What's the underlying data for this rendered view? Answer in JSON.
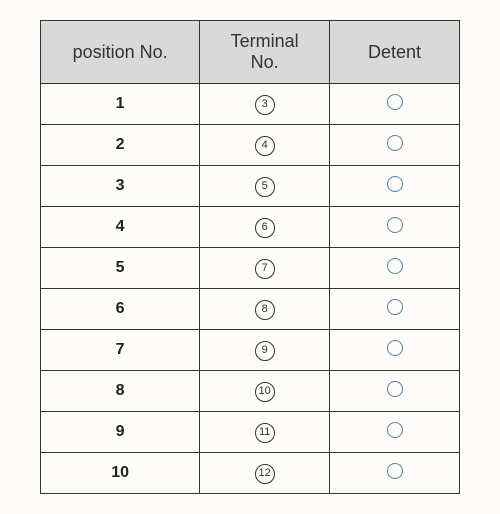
{
  "table": {
    "type": "table",
    "columns": [
      "position No.",
      "Terminal\nNo.",
      "Detent"
    ],
    "column_widths": [
      "38%",
      "31%",
      "31%"
    ],
    "header_bg": "#d9d9d9",
    "header_fontsize": 18,
    "cell_fontsize": 16,
    "border_color": "#333333",
    "background_color": "#fdfcf8",
    "circled_border_color": "#333333",
    "detent_circle_color": "#5a7fa0",
    "rows": [
      {
        "pos": "1",
        "term": "3",
        "detent": true
      },
      {
        "pos": "2",
        "term": "4",
        "detent": true
      },
      {
        "pos": "3",
        "term": "5",
        "detent": true
      },
      {
        "pos": "4",
        "term": "6",
        "detent": true
      },
      {
        "pos": "5",
        "term": "7",
        "detent": true
      },
      {
        "pos": "6",
        "term": "8",
        "detent": true
      },
      {
        "pos": "7",
        "term": "9",
        "detent": true
      },
      {
        "pos": "8",
        "term": "10",
        "detent": true
      },
      {
        "pos": "9",
        "term": "11",
        "detent": true
      },
      {
        "pos": "10",
        "term": "12",
        "detent": true
      }
    ]
  }
}
